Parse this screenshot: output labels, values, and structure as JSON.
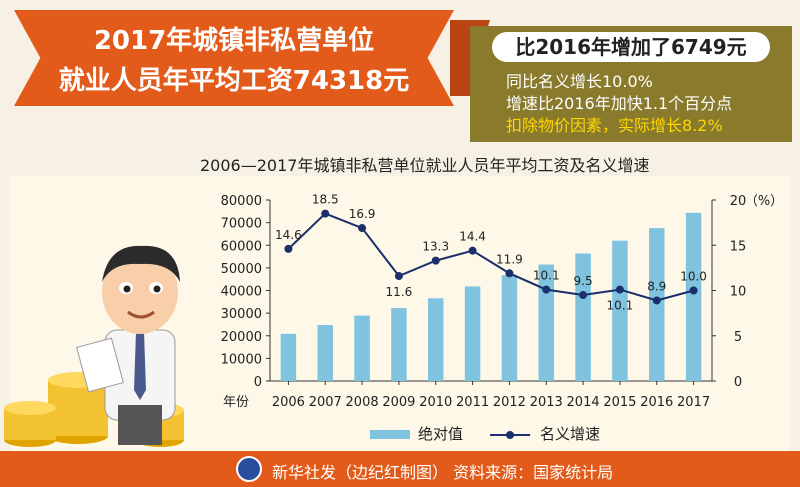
{
  "title": {
    "line1": "2017年城镇非私营单位",
    "line2": "就业人员年平均工资74318元"
  },
  "stats": {
    "headline": "比2016年增加了6749元",
    "line1": "同比名义增长10.0%",
    "line2": "增速比2016年加快1.1个百分点",
    "line3": "扣除物价因素，实际增长8.2%"
  },
  "chart_title": "2006—2017年城镇非私营单位就业人员年平均工资及名义增速",
  "legend": {
    "bar": "绝对值",
    "line": "名义增速"
  },
  "footer": {
    "source": "新华社发（边纪红制图）  资料来源：国家统计局"
  },
  "colors": {
    "accent": "#e35b1a",
    "bar": "#7fc3df",
    "line": "#1a2f6b",
    "stat_bg": "#8a7a2c"
  },
  "chart_data": {
    "type": "bar",
    "categories": [
      "2006",
      "2007",
      "2008",
      "2009",
      "2010",
      "2011",
      "2012",
      "2013",
      "2014",
      "2015",
      "2016",
      "2017"
    ],
    "x_prefix": "年份",
    "series": [
      {
        "name": "绝对值",
        "type": "bar",
        "axis": "left",
        "values": [
          20856,
          24721,
          28898,
          32244,
          36539,
          41799,
          46769,
          51483,
          56360,
          62029,
          67569,
          74318
        ]
      },
      {
        "name": "名义增速",
        "type": "line",
        "axis": "right",
        "values": [
          14.6,
          18.5,
          16.9,
          11.6,
          13.3,
          14.4,
          11.9,
          10.1,
          9.5,
          10.1,
          8.9,
          10.0
        ],
        "labels": [
          "14.6",
          "18.5",
          "16.9",
          "11.6",
          "13.3",
          "14.4",
          "11.9",
          "10.1",
          "9.5",
          "10.1",
          "8.9",
          "10.0"
        ]
      }
    ],
    "left_axis": {
      "ylim": [
        0,
        80000
      ],
      "ticks": [
        "0",
        "10000",
        "20000",
        "30000",
        "40000",
        "50000",
        "60000",
        "70000",
        "80000"
      ]
    },
    "right_axis": {
      "ylim": [
        0,
        20
      ],
      "ticks": [
        "0",
        "5",
        "10",
        "15",
        "20"
      ],
      "unit": "（%）"
    },
    "grid": false,
    "legend_position": "bottom-center"
  }
}
